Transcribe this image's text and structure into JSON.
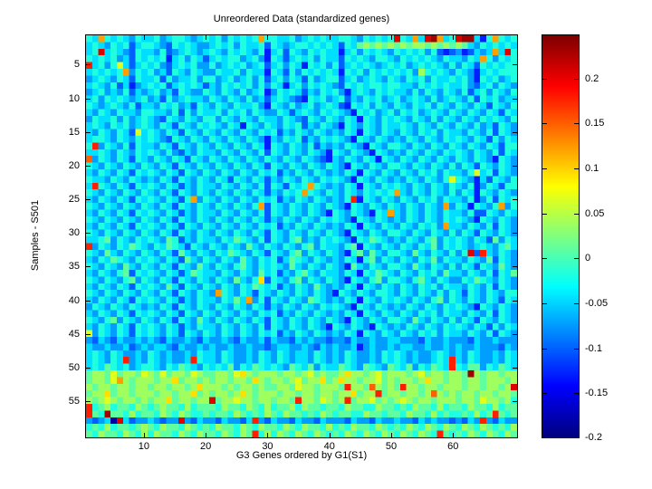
{
  "figure": {
    "background": "#ffffff"
  },
  "chart_data": {
    "type": "heatmap",
    "title": "Unreordered Data (standardized genes)",
    "xlabel": "G3 Genes ordered by G1(S1)",
    "ylabel": "Samples - S501",
    "n_cols": 70,
    "n_rows": 60,
    "x_ticks": [
      10,
      20,
      30,
      40,
      50,
      60
    ],
    "y_ticks": [
      5,
      10,
      15,
      20,
      25,
      30,
      35,
      40,
      45,
      50,
      55
    ],
    "colormap": "jet",
    "value_min": -0.2,
    "value_max": 0.249,
    "colorbar_ticks": [
      0.2,
      0.15,
      0.1,
      0.05,
      0,
      -0.05,
      -0.1,
      -0.15,
      -0.2
    ],
    "colorbar_tick_labels": [
      "0.2",
      "0.15",
      "0.1",
      "0.05",
      "0",
      "-0.05",
      "-0.1",
      "-0.15",
      "-0.2"
    ],
    "cell_encoding": "each char is hex 0-f; value = value_min + (hex+0.5)/16 * (value_max - value_min)",
    "matrix_rows": [
      "65b6565465564566545656465656b665564565655665465656e65b5efb56eff526b656",
      "5654656356654365654456564655636545665656536578787878788787878754656565",
      "56e565436554634565456546565462563654656552564656546565646323423545b5e6",
      "6565645365656256465356566456426535656465536565466546565654655465b64656",
      "d5646953565643565644645656456356465265646356565456564565654646536565",
      "565656b46564536546544655646552653646565652656465656564865654654256566",
      "4565465365563645564664564564635646536456635645654654656465565642656456",
      "5654635245656356565354656564646525646565436565665665546565655643564654",
      "4564546354564536544654654645624656535465642565465655464654654635646546",
      "5646565456453645655465465464535654326564563546564564565464565463656455",
      "6545654635546564536546546556426546456456532656465465465646546546536546",
      "5465465546655463646556465646544653565465654265645646564565465465465365",
      "4655646456543654654664654654655465436546546526546565465464654654656546",
      "5654656456546536546565465265465465635465426546546556546546546546453654",
      "5465465395654653654654654654656354654654546526546546546564655465463654",
      "5665465465654365465465465465425465635465654265465454654654656546536465",
      "6d465463655465365465465465465265465463545465426546654654654654654653",
      "5565465465654643546554654654636546546542654654265454654654656546546365",
      "c465465365465465365465465465465465465432546546526546546546546546542654",
      "6546546546546536546546546546536546546546542654654665465465464653654654",
      "5465465365654653654654654654656354654654546526546546546564655469563654",
      "6554654654546536546546536546535465465465654265465454654654696542536546",
      "5d65465365654653546554654654636536 56b6545465265465654654654654624653",
      "654654654654653654654654654653546 56b65465465465656b5465465464652654654",
      "54654653656546536b4654654654656354654654546d2654654654656465546246365",
      "654654654654653654654654654 6b3654654654654265465465465465 4b46526546b4",
      "54654653656546535465546546546365465465426546542 65b54654654655463365465",
      "6546546546546536546546546546535465465465654265465454654654656542654654",
      "546546536565465365465465465465635465465454652654654654656 4b55465463654",
      "6546546546546536546546546546536546546546542654654665465465464653654654",
      "5567465465654763546554657654636546745465654265765454654674656546537465",
      "d465465765465765365465465475465465467465546726546546546574656545654675",
      "654754654654653754654657654653654674654654267475466547546546 46e3d54654",
      "5465765465654653754654654754656357654654546526746546546574655465473654",
      "6546547546546536547546546754656547546546542754654665475465464653654754",
      "5465467365654653576554654654756354675465546526576546546564755465463657",
      "654654674654653654654654754 6a365467465465426546746654675465 44657654654",
      "5465465365654753654654654657656354654754546526546546546564655465463654",
      "654654654654653654 654b6546536546546546542654654665465465464653654654",
      "5465465365654653546554657 5b46365465476545465265465654654674654654653 65",
      "4654654654546536546546546546535465465465654265465454654654656542654654",
      "5465465365654653654654654654656354654654546526546546546564655465463654",
      "6546746546546536547546546546536546546546542654654665475465464653654654",
      "5465465365654653546554654654636546546542654654265454654654656546536465",
      "9465465365654653654654654654656354654654546526546546546564655465463654",
      "4354354454543544543544543544535443545443443544544554443544544435445444",
      "5445445345455435445454454454434554454354544524544545544544545445444354",
      "5654654454654544546554654454654654554654546544546565454456545465445465",
      "565465d4546545445d655465445465465455465454654454656545445 65d5465445465",
      "565765645665465765465657465765654765746557654765476574657 65d6577465765",
      "788797887987978879877887 9a878887887897877 8a88789788878978878 87f8788788",
      "78879b87888788a788787887887a8788789788a78a887889787887 8a88788788788878",
      "878878878878878878a888787887877887988788 87d887c8787d88788788878878878e",
      "788a7887888788788a7878878a87888788788788788a788d78878878c8787887887887",
      "87898788787 88a788788e78898878878 87d887987 8d788978789878878 88788798878",
      "d678677687678776867776877687686778687767768776687767687768677687768677",
      "d76f7768677687687667677687676876877676876776687767768776867667 6867d767",
      "43450e534454344e43544354435d435443544354443544354454435454434354d43544",
      "6768677678768776876768776876877687687768676877687676876876876876876768",
      "76877687686877687687768768 7d686876876876768768768768768 76d767687687687"
    ]
  }
}
